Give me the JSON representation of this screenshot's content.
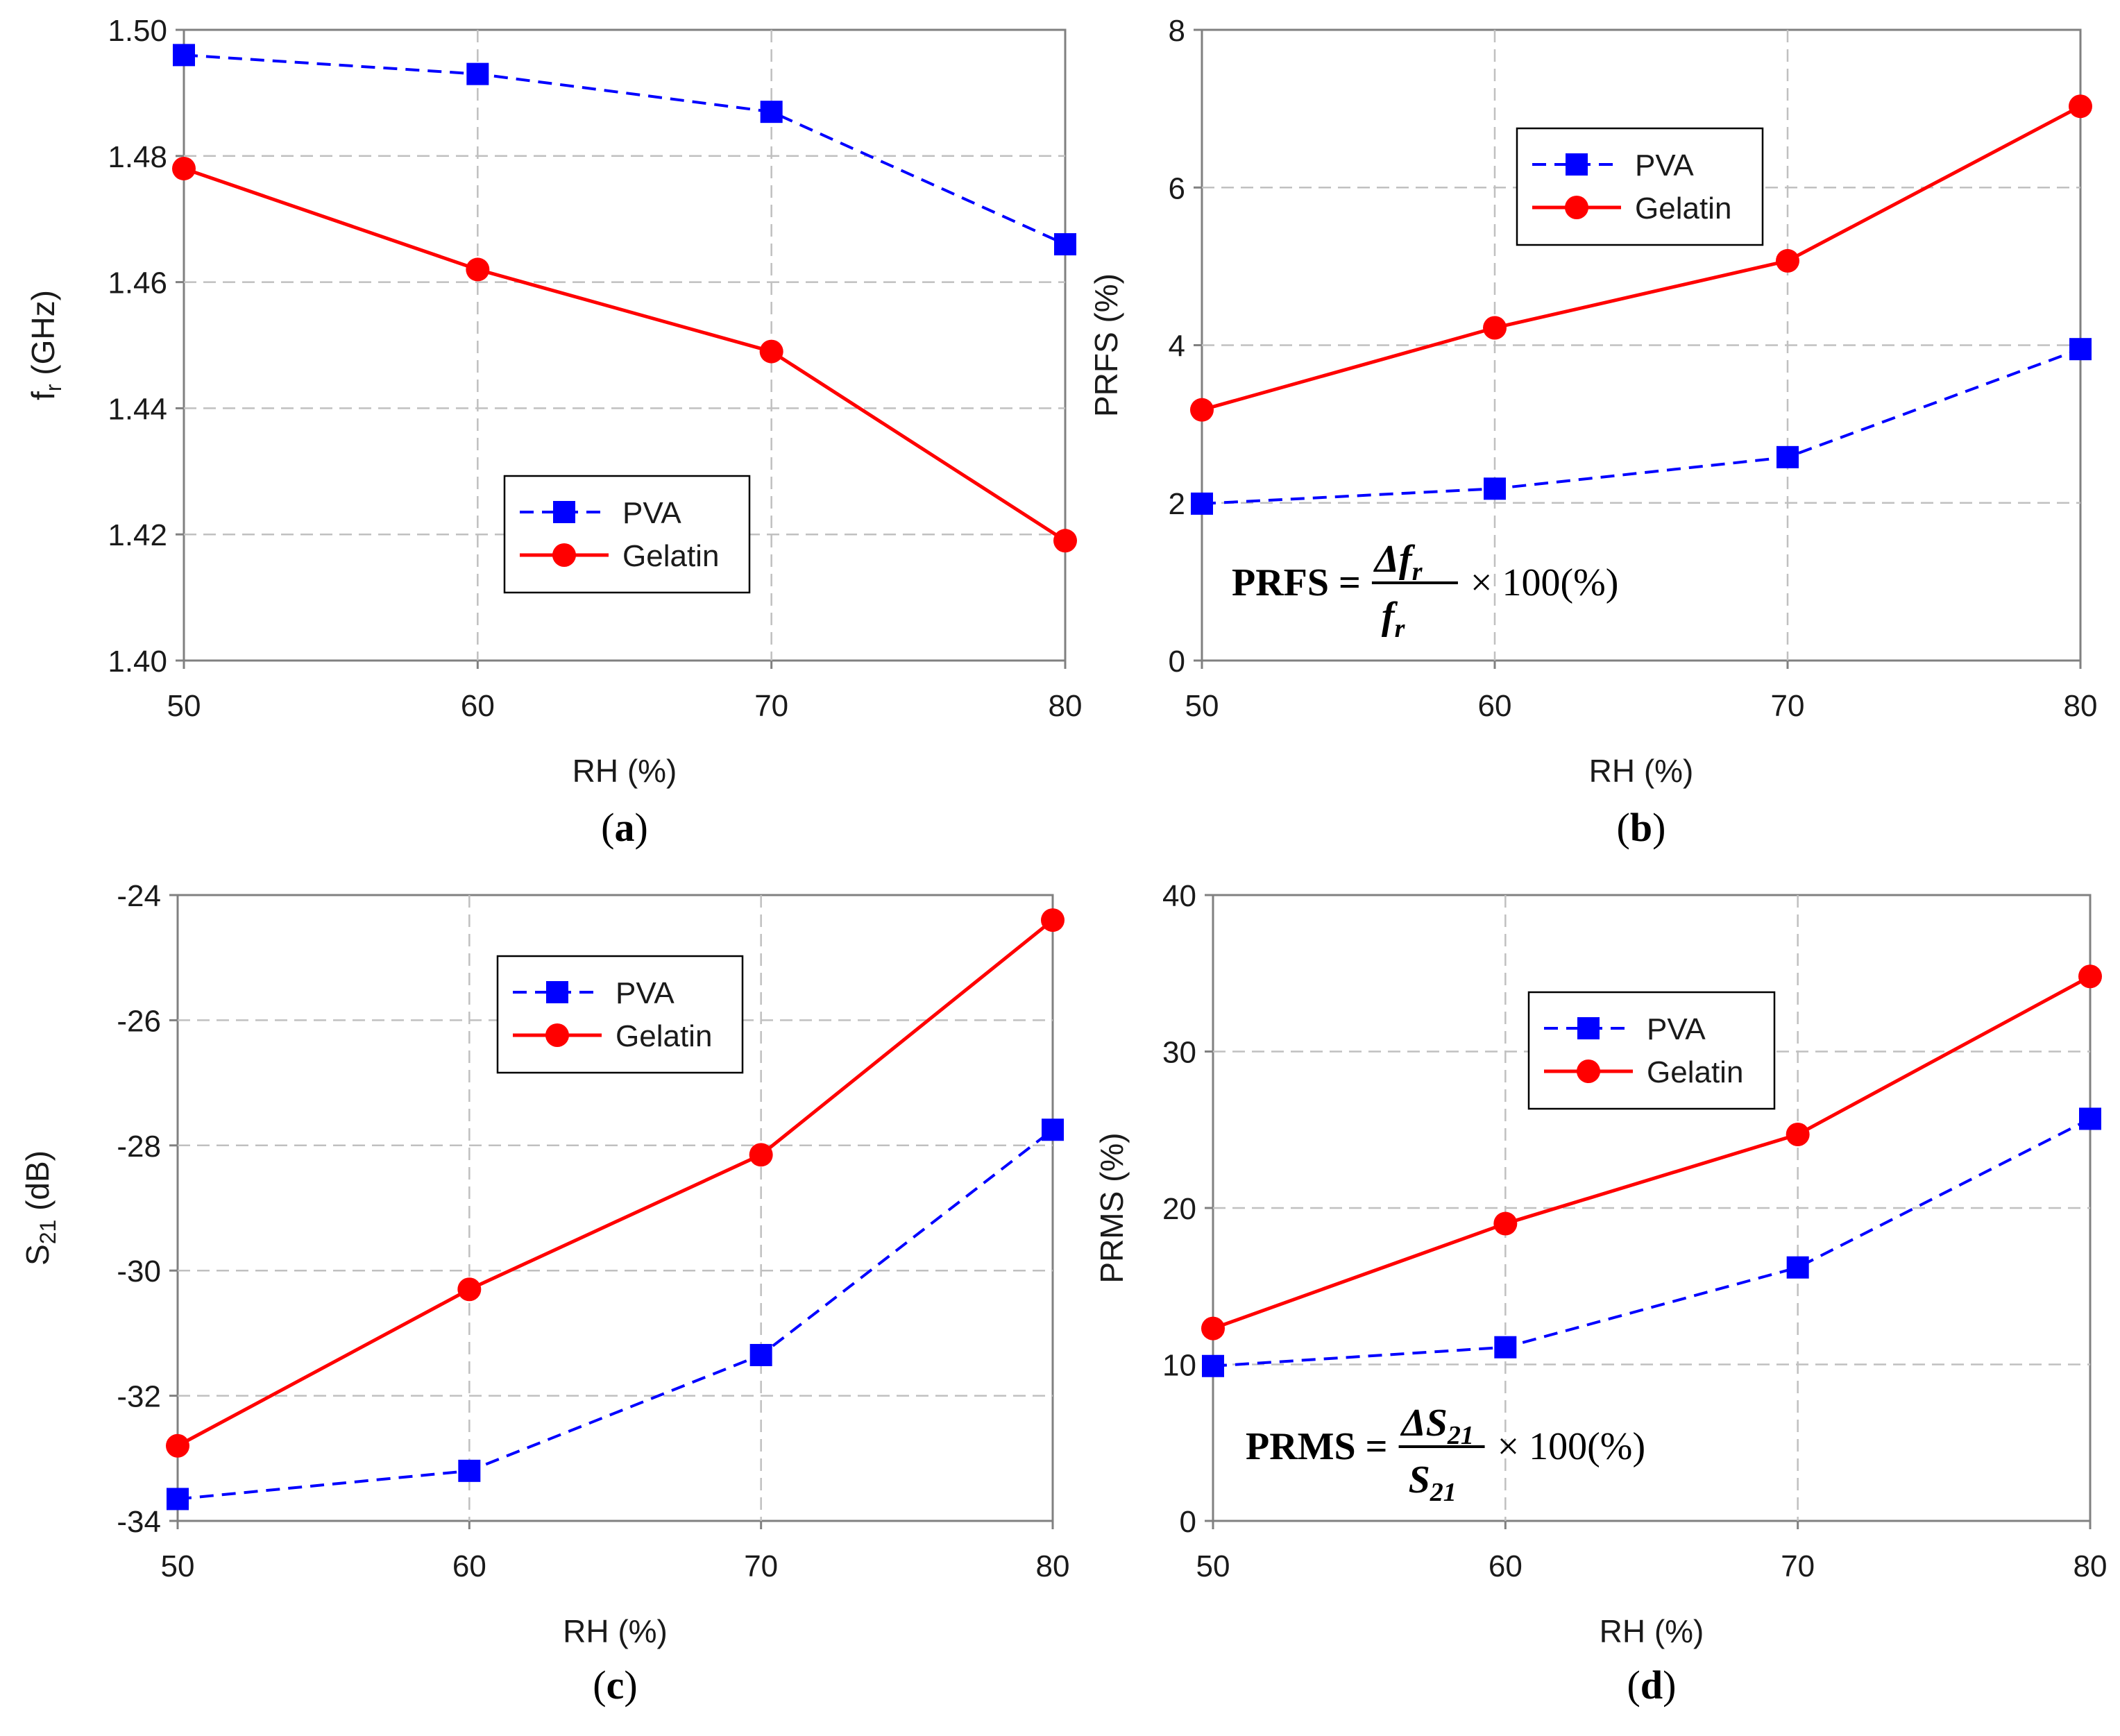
{
  "figure_panels": [
    {
      "label": "a",
      "formula": null
    },
    {
      "label": "b",
      "formula": {
        "lhs": "PRFS",
        "num": "Δf",
        "num_sub": "r",
        "den": "f",
        "den_sub": "r",
        "tail": "× 100(%)"
      }
    },
    {
      "label": "c",
      "formula": null
    },
    {
      "label": "d",
      "formula": {
        "lhs": "PRMS",
        "num": "ΔS",
        "num_sub": "21",
        "den": "S",
        "den_sub": "21",
        "tail": "× 100(%)"
      }
    }
  ],
  "colors": {
    "pva": "#0000ff",
    "gelatin": "#ff0000",
    "grid": "#c0c0c0",
    "axis": "#808080",
    "text": "#1a1a1a"
  },
  "chart_data": [
    {
      "type": "line",
      "title": "",
      "xlabel": "RH (%)",
      "ylabel": "f",
      "ylabel_sub": "r",
      "ylabel_tail": " (GHz)",
      "x": [
        50,
        60,
        70,
        80
      ],
      "xlim": [
        50,
        80
      ],
      "xticks": [
        "50",
        "60",
        "70",
        "80"
      ],
      "ylim": [
        1.4,
        1.5
      ],
      "yticks": [
        "1.40",
        "1.42",
        "1.44",
        "1.46",
        "1.48",
        "1.50"
      ],
      "grid": true,
      "legend": "lower-center",
      "series": [
        {
          "name": "PVA",
          "style": "dashed",
          "marker": "square",
          "values": [
            1.496,
            1.493,
            1.487,
            1.466
          ]
        },
        {
          "name": "Gelatin",
          "style": "solid",
          "marker": "circle",
          "values": [
            1.478,
            1.462,
            1.449,
            1.419
          ]
        }
      ]
    },
    {
      "type": "line",
      "title": "",
      "xlabel": "RH (%)",
      "ylabel": "PRFS (%)",
      "x": [
        50,
        60,
        70,
        80
      ],
      "xlim": [
        50,
        80
      ],
      "xticks": [
        "50",
        "60",
        "70",
        "80"
      ],
      "ylim": [
        0,
        8
      ],
      "yticks": [
        "0",
        "2",
        "4",
        "6",
        "8"
      ],
      "grid": true,
      "legend": "upper-center",
      "series": [
        {
          "name": "PVA",
          "style": "dashed",
          "marker": "square",
          "values": [
            1.99,
            2.18,
            2.58,
            3.95
          ]
        },
        {
          "name": "Gelatin",
          "style": "solid",
          "marker": "circle",
          "values": [
            3.18,
            4.22,
            5.07,
            7.03
          ]
        }
      ]
    },
    {
      "type": "line",
      "title": "",
      "xlabel": "RH (%)",
      "ylabel": "S",
      "ylabel_sub": "21",
      "ylabel_tail": " (dB)",
      "x": [
        50,
        60,
        70,
        80
      ],
      "xlim": [
        50,
        80
      ],
      "xticks": [
        "50",
        "60",
        "70",
        "80"
      ],
      "ylim": [
        -34,
        -24
      ],
      "yticks": [
        "-34",
        "-32",
        "-30",
        "-28",
        "-26",
        "-24"
      ],
      "grid": true,
      "legend": "upper-center",
      "series": [
        {
          "name": "PVA",
          "style": "dashed",
          "marker": "square",
          "values": [
            -33.65,
            -33.2,
            -31.35,
            -27.75
          ]
        },
        {
          "name": "Gelatin",
          "style": "solid",
          "marker": "circle",
          "values": [
            -32.8,
            -30.3,
            -28.15,
            -24.4
          ]
        }
      ]
    },
    {
      "type": "line",
      "title": "",
      "xlabel": "RH (%)",
      "ylabel": "PRMS (%)",
      "x": [
        50,
        60,
        70,
        80
      ],
      "xlim": [
        50,
        80
      ],
      "xticks": [
        "50",
        "60",
        "70",
        "80"
      ],
      "ylim": [
        0,
        40
      ],
      "yticks": [
        "0",
        "10",
        "20",
        "30",
        "40"
      ],
      "grid": true,
      "legend": "upper-center",
      "series": [
        {
          "name": "PVA",
          "style": "dashed",
          "marker": "square",
          "values": [
            9.9,
            11.1,
            16.2,
            25.7
          ]
        },
        {
          "name": "Gelatin",
          "style": "solid",
          "marker": "circle",
          "values": [
            12.3,
            19.0,
            24.7,
            34.8
          ]
        }
      ]
    }
  ]
}
